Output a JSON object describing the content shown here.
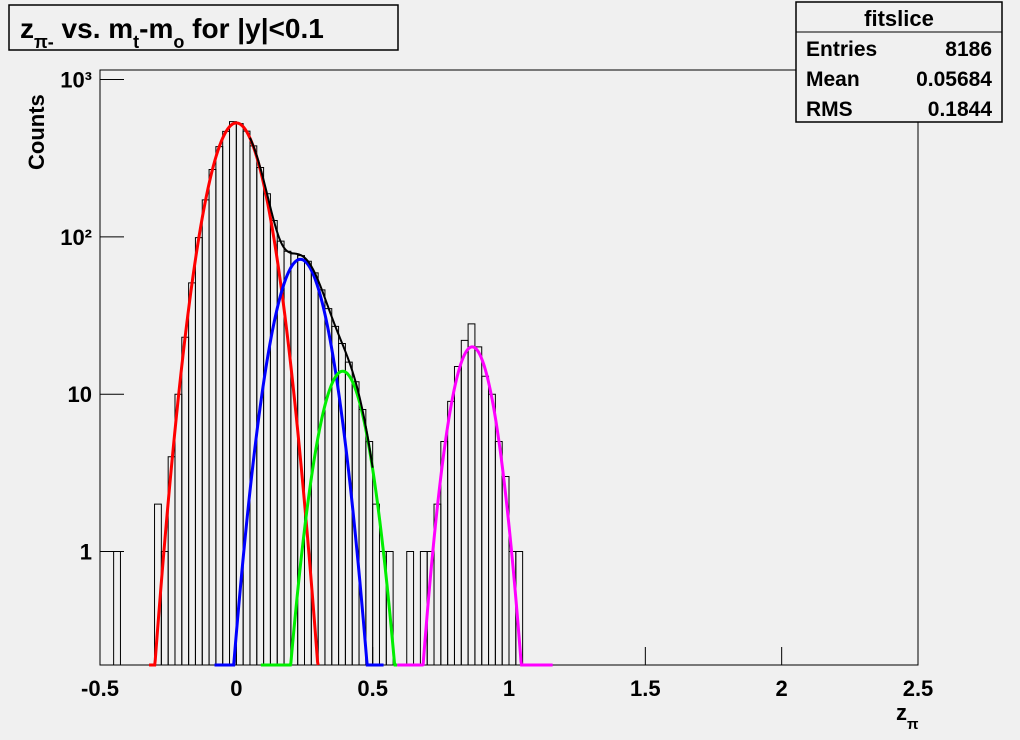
{
  "chart_data": {
    "type": "histogram",
    "title": [
      "z",
      "π-",
      " vs. m",
      "t",
      "-m",
      "o",
      " for |y|<0.1"
    ],
    "xlabel": [
      "z",
      "π"
    ],
    "ylabel": "Counts",
    "log_y": true,
    "color": "#000000",
    "xlim": [
      -0.5,
      2.5
    ],
    "xticks": [
      -0.5,
      0,
      0.5,
      1,
      1.5,
      2,
      2.5
    ],
    "ylim": [
      0.19,
      1150
    ],
    "yticks": [
      1,
      10,
      {
        "value": 100,
        "label": "10²"
      },
      {
        "value": 1000,
        "label": "10³"
      }
    ],
    "bins": [
      -0.45,
      -0.425,
      -0.4,
      -0.375,
      -0.35,
      -0.325,
      -0.3,
      -0.275,
      -0.25,
      -0.225,
      -0.2,
      -0.175,
      -0.15,
      -0.125,
      -0.1,
      -0.075,
      -0.05,
      -0.025,
      0,
      0.025,
      0.05,
      0.075,
      0.1,
      0.125,
      0.15,
      0.175,
      0.2,
      0.225,
      0.25,
      0.275,
      0.3,
      0.325,
      0.35,
      0.375,
      0.4,
      0.425,
      0.45,
      0.475,
      0.5,
      0.525,
      0.55,
      0.575,
      0.6,
      0.625,
      0.65,
      0.675,
      0.7,
      0.725,
      0.75,
      0.775,
      0.8,
      0.825,
      0.85,
      0.875,
      0.9,
      0.925,
      0.95,
      0.975,
      1,
      1.025,
      1.05,
      1.075,
      1.1
    ],
    "counts": [
      1,
      0,
      0,
      0,
      0,
      0,
      2,
      1,
      4,
      10,
      23,
      51,
      99,
      172,
      268,
      375,
      468,
      540,
      525,
      470,
      379,
      276,
      188,
      127,
      94,
      81,
      78,
      76,
      70,
      59,
      46,
      35,
      27,
      21,
      16,
      12,
      8,
      5,
      2,
      1,
      1,
      0,
      0,
      1,
      0,
      1,
      1,
      2,
      5,
      9,
      15,
      22,
      28,
      20,
      13,
      10,
      5,
      3,
      1,
      1,
      0,
      0
    ],
    "fits": [
      {
        "color": "#ff0000",
        "constant": 530,
        "mean": 0,
        "sigma": 0.075,
        "range": [
          -0.32,
          0.3
        ]
      },
      {
        "color": "#0000ff",
        "constant": 72,
        "mean": 0.235,
        "sigma": 0.071,
        "range": [
          -0.08,
          0.54
        ]
      },
      {
        "color": "#00ee00",
        "constant": 14,
        "mean": 0.39,
        "sigma": 0.065,
        "range": [
          0.09,
          0.59
        ]
      },
      {
        "color": "#ff00ff",
        "constant": 20,
        "mean": 0.865,
        "sigma": 0.059,
        "range": [
          0.59,
          1.16
        ]
      }
    ],
    "total_fit": {
      "color": "#000000",
      "range": [
        0.05,
        0.5
      ]
    },
    "stats": {
      "title": "fitslice",
      "rows": [
        [
          "Entries",
          8186
        ],
        [
          "Mean",
          0.05684
        ],
        [
          "RMS",
          0.1844
        ]
      ]
    }
  }
}
